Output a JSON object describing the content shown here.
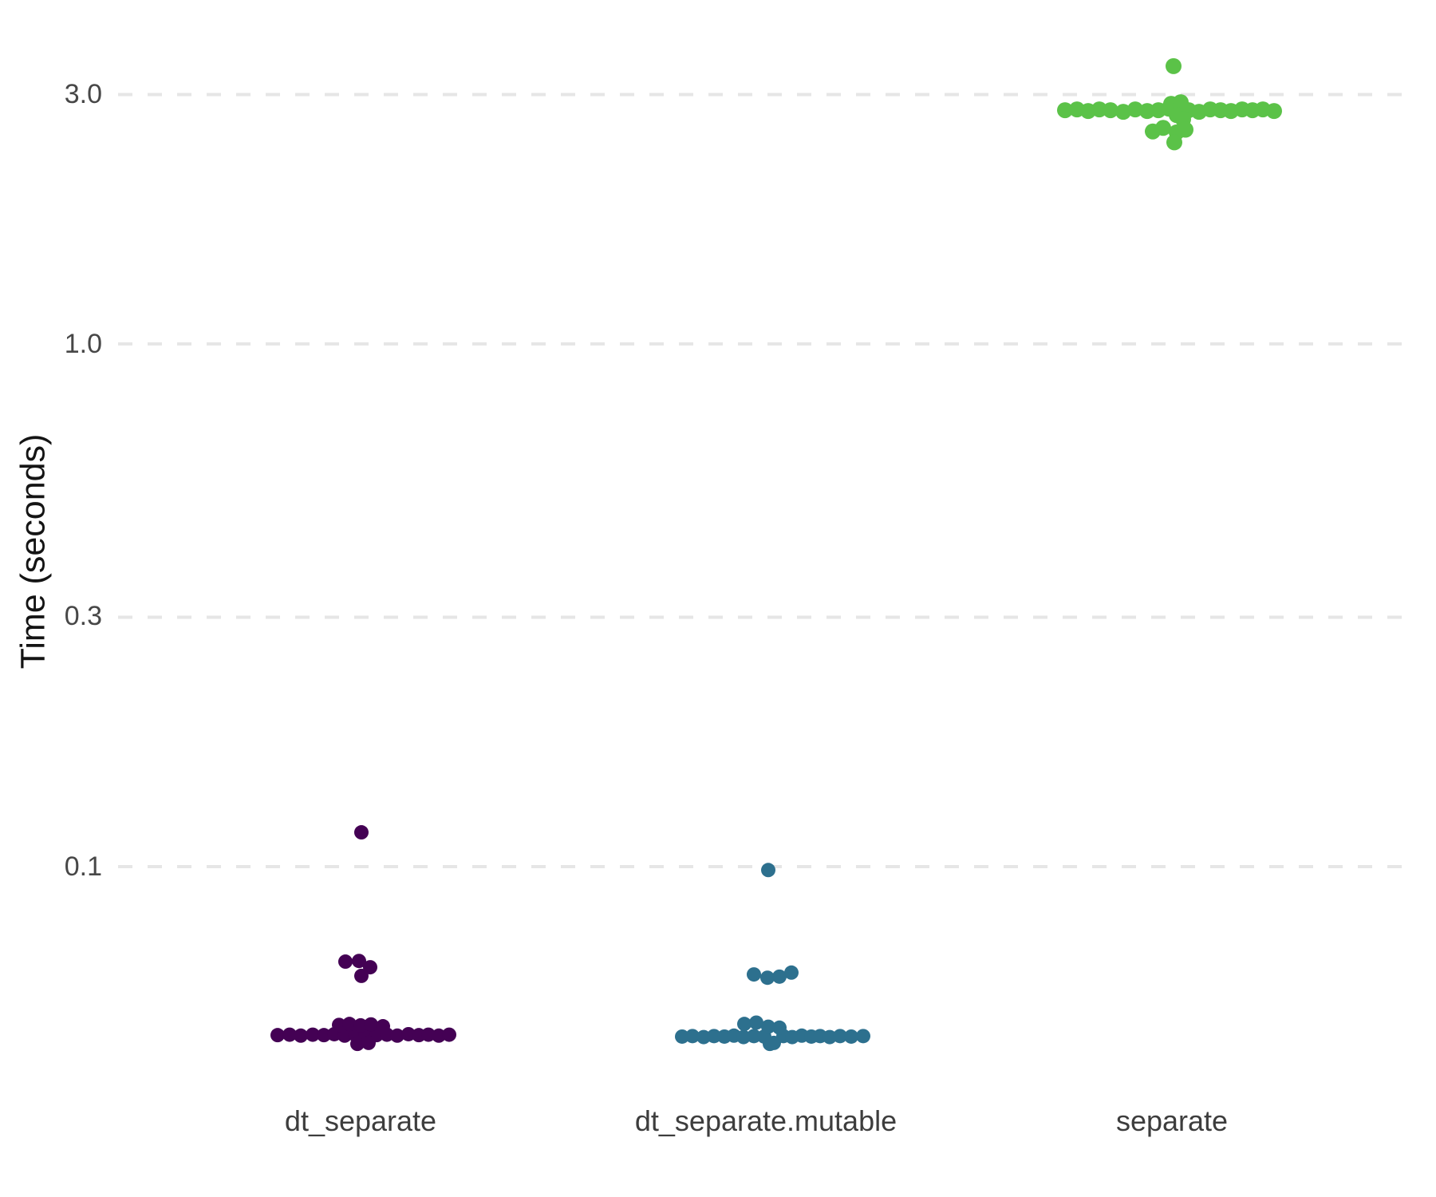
{
  "chart_data": {
    "type": "scatter",
    "variant": "jittered strip plot of benchmark timings, one column per method",
    "title": "",
    "xlabel": "",
    "ylabel": "Time (seconds)",
    "yscale": "log10",
    "ylim": [
      0.04,
      3.7
    ],
    "ytick_values": [
      3.0,
      1.0,
      0.3,
      0.1
    ],
    "ytick_labels": [
      "3.0",
      "1.0",
      "0.3",
      "0.1"
    ],
    "categories": [
      "dt_separate",
      "dt_separate.mutable",
      "separate"
    ],
    "legend": "none",
    "grid": "horizontal light-gray dashed lines at each y tick",
    "grid_color": "#e6e6e6",
    "background_color": "#ffffff",
    "colors": {
      "dt_separate": "#440154",
      "dt_separate_mutable": "#2d708e",
      "separate": "#5bc248"
    },
    "point_unit": "seconds",
    "series": [
      {
        "name": "dt_separate",
        "color": "#440154",
        "radius": 9,
        "summary": "main cluster ~0.046-0.050 s, mid cluster ~0.062-0.066 s, outlier 0.116 s",
        "points": [
          [
            -104,
            0.0476
          ],
          [
            -89,
            0.0477
          ],
          [
            -75,
            0.0475
          ],
          [
            -60,
            0.0477
          ],
          [
            -46,
            0.0476
          ],
          [
            -33,
            0.0478
          ],
          [
            -20,
            0.0475
          ],
          [
            -7,
            0.0477
          ],
          [
            6,
            0.0474
          ],
          [
            20,
            0.0476
          ],
          [
            33,
            0.0477
          ],
          [
            46,
            0.0475
          ],
          [
            60,
            0.0478
          ],
          [
            73,
            0.0476
          ],
          [
            85,
            0.0477
          ],
          [
            98,
            0.0475
          ],
          [
            111,
            0.0477
          ],
          [
            -27,
            0.0498
          ],
          [
            -14,
            0.05
          ],
          [
            0,
            0.0497
          ],
          [
            13,
            0.0499
          ],
          [
            28,
            0.0495
          ],
          [
            -4,
            0.0458
          ],
          [
            10,
            0.046
          ],
          [
            -19,
            0.0658
          ],
          [
            -2,
            0.066
          ],
          [
            12,
            0.0642
          ],
          [
            1,
            0.0618
          ],
          [
            1,
            0.1163
          ]
        ]
      },
      {
        "name": "dt_separate.mutable",
        "color": "#2d708e",
        "radius": 9,
        "summary": "main cluster ~0.046-0.050 s, mid cluster ~0.061-0.063 s, outlier 0.099 s",
        "points": [
          [
            -105,
            0.0473
          ],
          [
            -92,
            0.0474
          ],
          [
            -78,
            0.0472
          ],
          [
            -65,
            0.0474
          ],
          [
            -52,
            0.0473
          ],
          [
            -40,
            0.0475
          ],
          [
            -28,
            0.0472
          ],
          [
            -15,
            0.0474
          ],
          [
            -2,
            0.0473
          ],
          [
            10,
            0.046
          ],
          [
            22,
            0.0474
          ],
          [
            33,
            0.0472
          ],
          [
            45,
            0.0475
          ],
          [
            57,
            0.0473
          ],
          [
            68,
            0.0474
          ],
          [
            80,
            0.0472
          ],
          [
            93,
            0.0474
          ],
          [
            107,
            0.0473
          ],
          [
            122,
            0.0474
          ],
          [
            -27,
            0.05
          ],
          [
            -12,
            0.0503
          ],
          [
            3,
            0.0494
          ],
          [
            17,
            0.0492
          ],
          [
            5,
            0.0458
          ],
          [
            -15,
            0.0622
          ],
          [
            2,
            0.0613
          ],
          [
            17,
            0.0616
          ],
          [
            32,
            0.0627
          ],
          [
            3,
            0.0985
          ]
        ]
      },
      {
        "name": "separate",
        "color": "#5bc248",
        "radius": 10,
        "summary": "main cluster ~2.7-2.9 s, low points ~2.43-2.59 s, outlier 3.40 s",
        "points": [
          [
            -134,
            2.8
          ],
          [
            -119,
            2.81
          ],
          [
            -105,
            2.79
          ],
          [
            -91,
            2.81
          ],
          [
            -77,
            2.8
          ],
          [
            -61,
            2.78
          ],
          [
            -46,
            2.81
          ],
          [
            -31,
            2.79
          ],
          [
            -17,
            2.8
          ],
          [
            -4,
            2.82
          ],
          [
            21,
            2.8
          ],
          [
            34,
            2.78
          ],
          [
            48,
            2.81
          ],
          [
            61,
            2.8
          ],
          [
            74,
            2.79
          ],
          [
            88,
            2.81
          ],
          [
            101,
            2.8
          ],
          [
            114,
            2.81
          ],
          [
            128,
            2.79
          ],
          [
            -1,
            2.88
          ],
          [
            11,
            2.9
          ],
          [
            6,
            2.74
          ],
          [
            14,
            2.69
          ],
          [
            -24,
            2.55
          ],
          [
            -11,
            2.59
          ],
          [
            6,
            2.54
          ],
          [
            17,
            2.57
          ],
          [
            3,
            2.43
          ],
          [
            2,
            3.4
          ]
        ]
      }
    ]
  }
}
